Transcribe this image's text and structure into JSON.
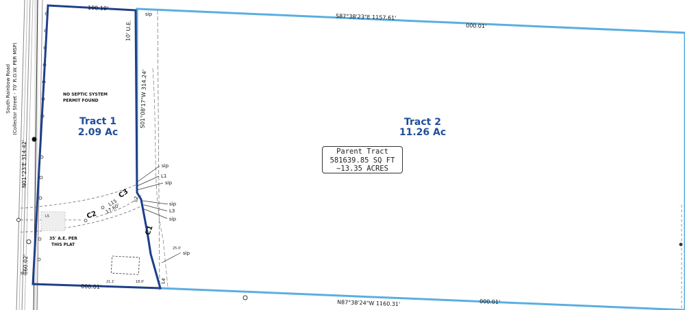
{
  "tract1": {
    "name": "Tract 1",
    "area": "2.09 Ac"
  },
  "tract2": {
    "name": "Tract 2",
    "area": "11.26 Ac"
  },
  "parent": {
    "title": "Parent Tract",
    "sqft": "581639.85 SQ FT",
    "acres": "~13.35 ACRES"
  },
  "road": {
    "name": "South Rainbow Road",
    "classification": "(Collector Street - 70' R.O.W. PER MSP)"
  },
  "bearings": {
    "north_line": "S87°38'23\"E  1157.61'",
    "south_line": "N87°38'24\"W  1160.31'",
    "east_line_tract1": "S01°08'17\"W  314.24'",
    "west_line": "N01°23'E  314.42'",
    "north_tract1": "100.19'",
    "north_tract2": "000.01'",
    "south_tract1": "000.01'",
    "south_tract2": "000.01'",
    "west_short": "60.02'"
  },
  "notes": {
    "septic": [
      "NO SEPTIC SYSTEM",
      "PERMIT FOUND"
    ],
    "access_easement": [
      "35' A.E. PER",
      "THIS PLAT"
    ],
    "utility_easement": "10' U.E."
  },
  "labels": {
    "sip": "sip",
    "L1": "L1",
    "L2": "L2",
    "L3": "L3",
    "L4": "L4",
    "L5": "L5",
    "L15": "L15",
    "C1": "C1",
    "C2": "C2",
    "C3": "C3",
    "dim_1": "17.60'",
    "dim_2": "25.0'",
    "dim_3": "21.1'",
    "dim_4": "18.0'"
  },
  "colors": {
    "tract1_outline": "#1f3f8a",
    "tract2_outline": "#5aaee0",
    "label_text": "#1f4e9a"
  }
}
